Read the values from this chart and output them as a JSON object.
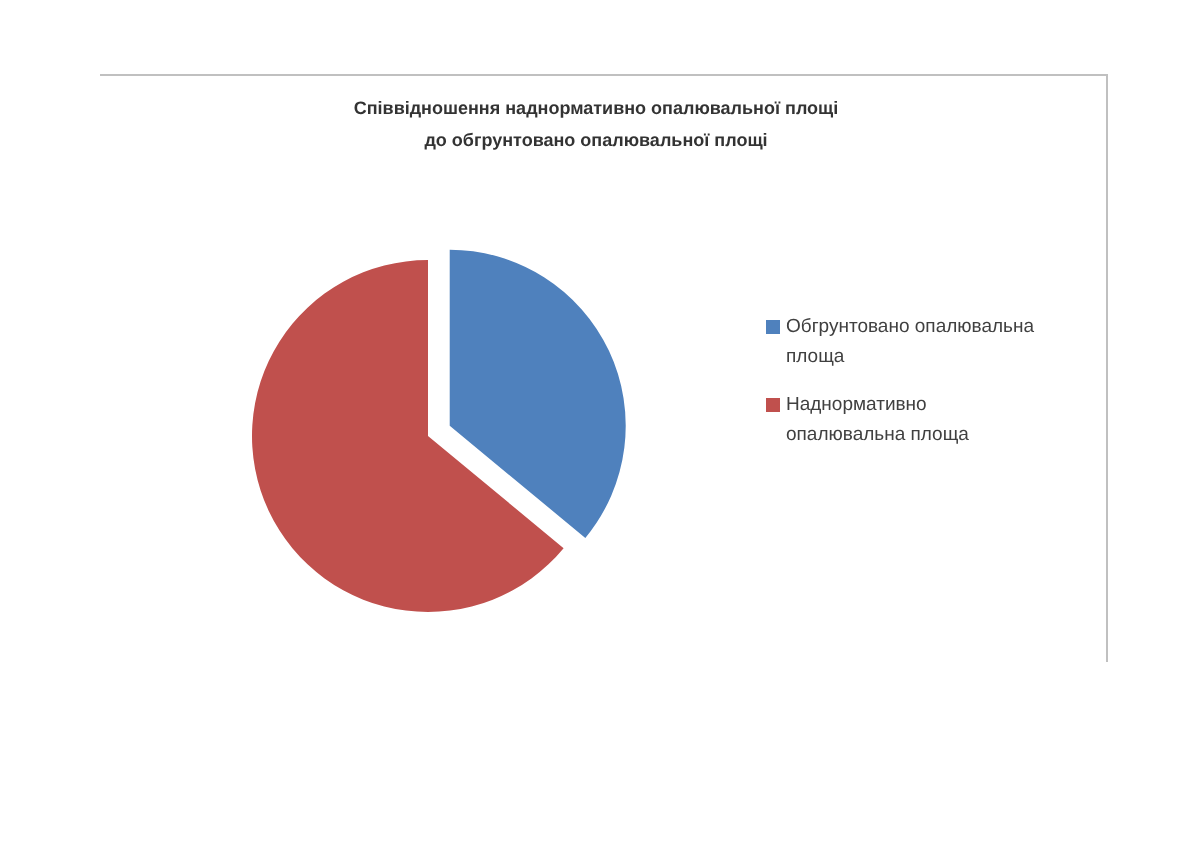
{
  "chart_data": {
    "type": "pie",
    "title": "Співвідношення наднормативно опалювальної площі до обгрунтовано опалювальної площі",
    "categories": [
      "Обгрунтовано опалювальна площа",
      "Наднормативно опалювальна площа"
    ],
    "values": [
      36,
      64
    ],
    "colors": [
      "#4f81bd",
      "#c0504d"
    ],
    "legend": "right"
  }
}
